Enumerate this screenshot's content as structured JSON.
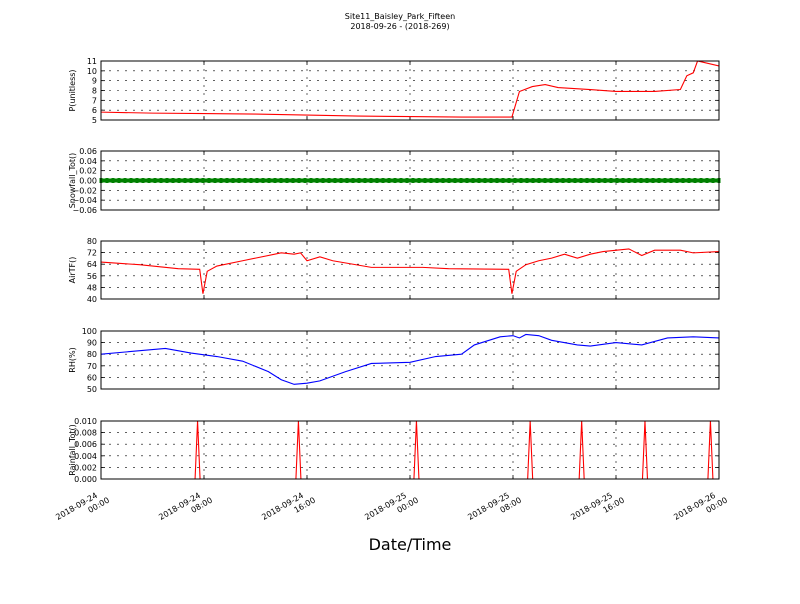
{
  "title": {
    "line1": "Site11_Baisley_Park_Fifteen",
    "line2": "2018-09-26 - (2018-269)"
  },
  "x_axis": {
    "label": "Date/Time",
    "ticks": [
      {
        "value": "2018-09-24 00:00",
        "line1": "2018-09-24",
        "line2": "00:00"
      },
      {
        "value": "2018-09-24 08:00",
        "line1": "2018-09-24",
        "line2": "08:00"
      },
      {
        "value": "2018-09-24 16:00",
        "line1": "2018-09-24",
        "line2": "16:00"
      },
      {
        "value": "2018-09-25 00:00",
        "line1": "2018-09-25",
        "line2": "00:00"
      },
      {
        "value": "2018-09-25 08:00",
        "line1": "2018-09-25",
        "line2": "08:00"
      },
      {
        "value": "2018-09-25 16:00",
        "line1": "2018-09-25",
        "line2": "16:00"
      },
      {
        "value": "2018-09-26 00:00",
        "line1": "2018-09-26",
        "line2": "00:00"
      }
    ],
    "range": [
      "2018-09-24 00:00",
      "2018-09-26 00:00"
    ]
  },
  "chart_data": [
    {
      "type": "line",
      "ylabel": "P(unitless)",
      "ylim": [
        5,
        11
      ],
      "yticks": [
        "5",
        "6",
        "7",
        "8",
        "9",
        "10",
        "11"
      ],
      "grid": true,
      "series": [
        {
          "color": "#ff0000",
          "points": [
            [
              "2018-09-24 00:00",
              5.8
            ],
            [
              "2018-09-24 04:00",
              5.7
            ],
            [
              "2018-09-24 08:00",
              5.65
            ],
            [
              "2018-09-24 12:00",
              5.6
            ],
            [
              "2018-09-24 16:00",
              5.5
            ],
            [
              "2018-09-24 20:00",
              5.4
            ],
            [
              "2018-09-25 00:00",
              5.35
            ],
            [
              "2018-09-25 04:00",
              5.3
            ],
            [
              "2018-09-25 07:55",
              5.3
            ],
            [
              "2018-09-25 08:30",
              7.9
            ],
            [
              "2018-09-25 09:30",
              8.4
            ],
            [
              "2018-09-25 10:30",
              8.6
            ],
            [
              "2018-09-25 11:30",
              8.3
            ],
            [
              "2018-09-25 14:00",
              8.1
            ],
            [
              "2018-09-25 16:00",
              7.9
            ],
            [
              "2018-09-25 19:00",
              7.9
            ],
            [
              "2018-09-25 21:00",
              8.1
            ],
            [
              "2018-09-25 21:30",
              9.5
            ],
            [
              "2018-09-25 22:00",
              9.8
            ],
            [
              "2018-09-25 22:20",
              11.0
            ],
            [
              "2018-09-25 23:00",
              10.8
            ],
            [
              "2018-09-26 00:00",
              10.5
            ]
          ]
        }
      ]
    },
    {
      "type": "line",
      "ylabel": "Snowfall_Tot()",
      "ylim": [
        -0.06,
        0.06
      ],
      "yticks": [
        "−0.06",
        "−0.04",
        "−0.02",
        "0.00",
        "0.02",
        "0.04",
        "0.06"
      ],
      "grid": true,
      "series": [
        {
          "color": "#008000",
          "markers": true,
          "points": [
            [
              "2018-09-24 00:00",
              0.0
            ],
            [
              "2018-09-26 00:00",
              0.0
            ]
          ]
        }
      ]
    },
    {
      "type": "line",
      "ylabel": "AirTF()",
      "ylim": [
        36,
        80
      ],
      "yticks": [
        "40",
        "48",
        "56",
        "64",
        "72",
        "80"
      ],
      "grid": true,
      "series": [
        {
          "color": "#ff0000",
          "points": [
            [
              "2018-09-24 00:00",
              64
            ],
            [
              "2018-09-24 03:00",
              62
            ],
            [
              "2018-09-24 06:00",
              59
            ],
            [
              "2018-09-24 07:40",
              58.5
            ],
            [
              "2018-09-24 07:55",
              40
            ],
            [
              "2018-09-24 08:15",
              57
            ],
            [
              "2018-09-24 09:00",
              61
            ],
            [
              "2018-09-24 11:00",
              65
            ],
            [
              "2018-09-24 12:00",
              67
            ],
            [
              "2018-09-24 14:00",
              71
            ],
            [
              "2018-09-24 15:00",
              70
            ],
            [
              "2018-09-24 15:30",
              71
            ],
            [
              "2018-09-24 16:00",
              65
            ],
            [
              "2018-09-24 17:00",
              68
            ],
            [
              "2018-09-24 18:00",
              65
            ],
            [
              "2018-09-24 21:00",
              60
            ],
            [
              "2018-09-25 01:00",
              60
            ],
            [
              "2018-09-25 03:00",
              59
            ],
            [
              "2018-09-25 07:40",
              58.5
            ],
            [
              "2018-09-25 07:55",
              40
            ],
            [
              "2018-09-25 08:15",
              57
            ],
            [
              "2018-09-25 09:00",
              62
            ],
            [
              "2018-09-25 10:00",
              65
            ],
            [
              "2018-09-25 11:00",
              67
            ],
            [
              "2018-09-25 12:00",
              70
            ],
            [
              "2018-09-25 13:00",
              67
            ],
            [
              "2018-09-25 14:00",
              70
            ],
            [
              "2018-09-25 15:00",
              72
            ],
            [
              "2018-09-25 17:00",
              74
            ],
            [
              "2018-09-25 18:00",
              69
            ],
            [
              "2018-09-25 19:00",
              73
            ],
            [
              "2018-09-25 21:00",
              73
            ],
            [
              "2018-09-25 22:00",
              71
            ],
            [
              "2018-09-26 00:00",
              72
            ]
          ]
        }
      ]
    },
    {
      "type": "line",
      "ylabel": "RH(%)",
      "ylim": [
        50,
        100
      ],
      "yticks": [
        "50",
        "60",
        "70",
        "80",
        "90",
        "100"
      ],
      "grid": true,
      "series": [
        {
          "color": "#0000ff",
          "points": [
            [
              "2018-09-24 00:00",
              80
            ],
            [
              "2018-09-24 02:00",
              82
            ],
            [
              "2018-09-24 04:00",
              84
            ],
            [
              "2018-09-24 05:00",
              85
            ],
            [
              "2018-09-24 07:00",
              81
            ],
            [
              "2018-09-24 09:00",
              78
            ],
            [
              "2018-09-24 11:00",
              74
            ],
            [
              "2018-09-24 13:00",
              65
            ],
            [
              "2018-09-24 14:00",
              58
            ],
            [
              "2018-09-24 15:00",
              54
            ],
            [
              "2018-09-24 16:00",
              55
            ],
            [
              "2018-09-24 17:00",
              57
            ],
            [
              "2018-09-24 19:00",
              65
            ],
            [
              "2018-09-24 21:00",
              72
            ],
            [
              "2018-09-25 00:00",
              73
            ],
            [
              "2018-09-25 02:00",
              78
            ],
            [
              "2018-09-25 04:00",
              80
            ],
            [
              "2018-09-25 05:00",
              88
            ],
            [
              "2018-09-25 07:00",
              95
            ],
            [
              "2018-09-25 08:00",
              96
            ],
            [
              "2018-09-25 08:30",
              94
            ],
            [
              "2018-09-25 09:00",
              97
            ],
            [
              "2018-09-25 10:00",
              96
            ],
            [
              "2018-09-25 11:00",
              92
            ],
            [
              "2018-09-25 13:00",
              88
            ],
            [
              "2018-09-25 14:00",
              87
            ],
            [
              "2018-09-25 16:00",
              90
            ],
            [
              "2018-09-25 18:00",
              88
            ],
            [
              "2018-09-25 20:00",
              94
            ],
            [
              "2018-09-25 22:00",
              95
            ],
            [
              "2018-09-26 00:00",
              94
            ]
          ]
        }
      ]
    },
    {
      "type": "line",
      "ylabel": "Rainfall_Tot()",
      "ylim": [
        0,
        0.01
      ],
      "yticks": [
        "0.000",
        "0.002",
        "0.004",
        "0.006",
        "0.008",
        "0.010"
      ],
      "grid": true,
      "series": [
        {
          "color": "#ff0000",
          "spikes": [
            [
              "2018-09-24 07:30",
              0.01
            ],
            [
              "2018-09-24 15:20",
              0.01
            ],
            [
              "2018-09-25 00:30",
              0.01
            ],
            [
              "2018-09-25 09:20",
              0.01
            ],
            [
              "2018-09-25 13:20",
              0.01
            ],
            [
              "2018-09-25 18:15",
              0.01
            ],
            [
              "2018-09-25 23:20",
              0.01
            ]
          ]
        }
      ]
    }
  ]
}
